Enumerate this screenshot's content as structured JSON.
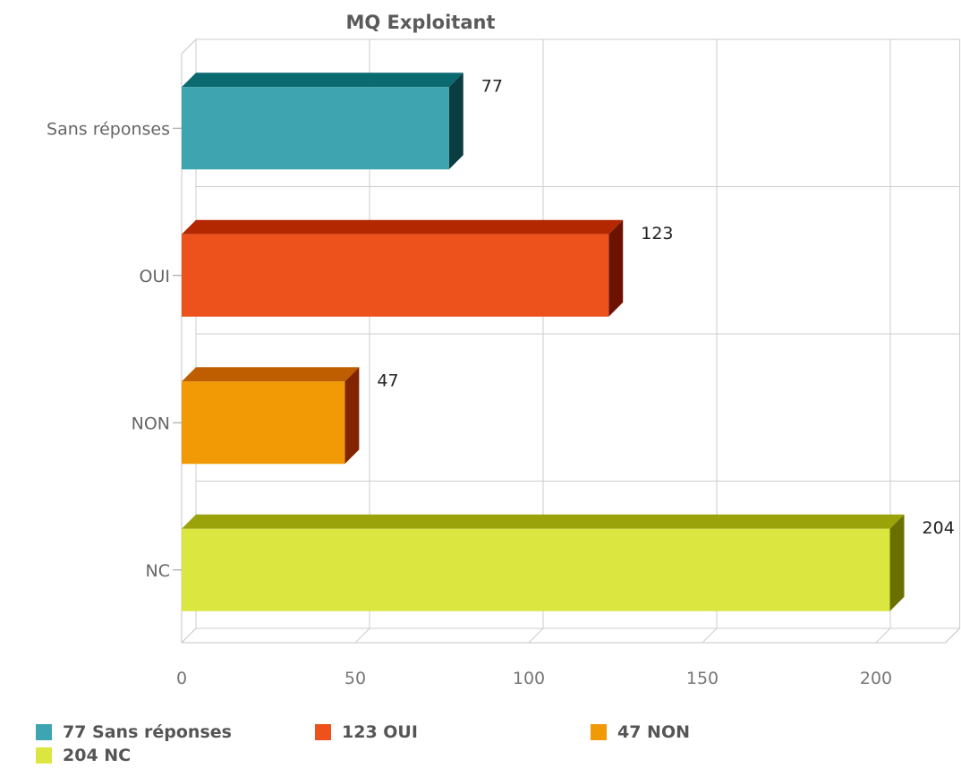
{
  "chart_data": {
    "type": "bar",
    "orientation": "horizontal",
    "three_d": true,
    "title": "MQ Exploitant",
    "xlabel": "",
    "ylabel": "",
    "categories": [
      "Sans réponses",
      "OUI",
      "NON",
      "NC"
    ],
    "values": [
      77,
      123,
      47,
      204
    ],
    "data_labels": [
      "77",
      "123",
      "47",
      "204"
    ],
    "colors": [
      {
        "front": "#3ea5b0",
        "top": "#0b6970",
        "side": "#0a3d42"
      },
      {
        "front": "#ee521c",
        "top": "#b32800",
        "side": "#6e1200"
      },
      {
        "front": "#f29a06",
        "top": "#bf5e00",
        "side": "#822400"
      },
      {
        "front": "#dce641",
        "top": "#9aa40a",
        "side": "#6a7000"
      }
    ],
    "xaxis": {
      "min": 0,
      "max": 200,
      "ticks": [
        0,
        50,
        100,
        150,
        200
      ],
      "tick_labels": [
        "0",
        "50",
        "100",
        "150",
        "200"
      ]
    },
    "grid": true,
    "legend": {
      "position": "bottom",
      "items": [
        {
          "label": "77 Sans réponses",
          "color": "#3ea5b0"
        },
        {
          "label": "123 OUI",
          "color": "#ee521c"
        },
        {
          "label": "47 NON",
          "color": "#f29a06"
        },
        {
          "label": "204 NC",
          "color": "#dce641"
        }
      ]
    }
  }
}
